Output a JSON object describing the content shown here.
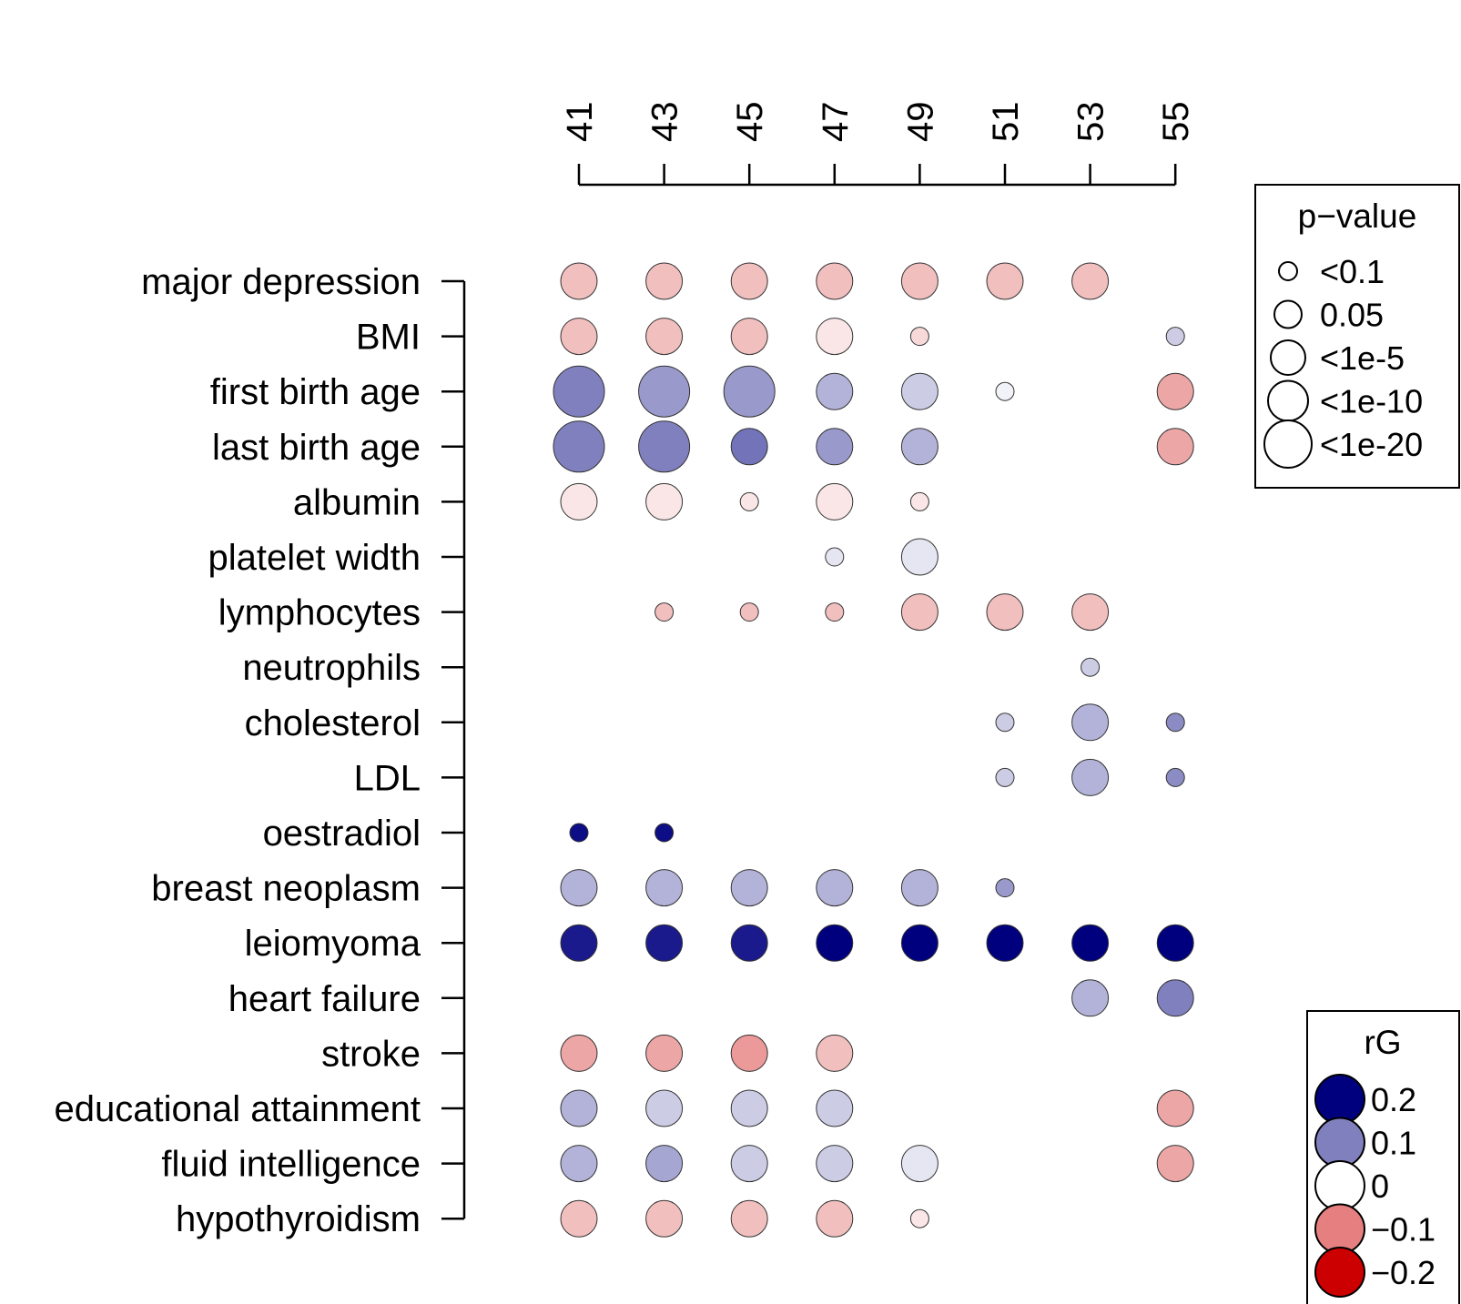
{
  "chart_data": {
    "type": "bubble-matrix",
    "title": "",
    "xlabel": "",
    "ylabel": "",
    "x": [
      41,
      43,
      45,
      47,
      49,
      51,
      53,
      55
    ],
    "traits": [
      "major depression",
      "BMI",
      "first birth age",
      "last birth age",
      "albumin",
      "platelet width",
      "lymphocytes",
      "neutrophils",
      "cholesterol",
      "LDL",
      "oestradiol",
      "breast neoplasm",
      "leiomyoma",
      "heart failure",
      "stroke",
      "educational attainment",
      "fluid intelligence",
      "hypothyroidism"
    ],
    "p_levels": [
      "<0.1",
      "0.05",
      "<1e-5",
      "<1e-10",
      "<1e-20"
    ],
    "points": [
      {
        "trait": "major depression",
        "x": 41,
        "rg": -0.05,
        "p_level": 3
      },
      {
        "trait": "major depression",
        "x": 43,
        "rg": -0.05,
        "p_level": 3
      },
      {
        "trait": "major depression",
        "x": 45,
        "rg": -0.05,
        "p_level": 3
      },
      {
        "trait": "major depression",
        "x": 47,
        "rg": -0.05,
        "p_level": 3
      },
      {
        "trait": "major depression",
        "x": 49,
        "rg": -0.05,
        "p_level": 3
      },
      {
        "trait": "major depression",
        "x": 51,
        "rg": -0.05,
        "p_level": 3
      },
      {
        "trait": "major depression",
        "x": 53,
        "rg": -0.05,
        "p_level": 3
      },
      {
        "trait": "BMI",
        "x": 41,
        "rg": -0.05,
        "p_level": 3
      },
      {
        "trait": "BMI",
        "x": 43,
        "rg": -0.05,
        "p_level": 3
      },
      {
        "trait": "BMI",
        "x": 45,
        "rg": -0.05,
        "p_level": 3
      },
      {
        "trait": "BMI",
        "x": 47,
        "rg": -0.02,
        "p_level": 3
      },
      {
        "trait": "BMI",
        "x": 49,
        "rg": -0.03,
        "p_level": 1
      },
      {
        "trait": "BMI",
        "x": 55,
        "rg": 0.04,
        "p_level": 1
      },
      {
        "trait": "first birth age",
        "x": 41,
        "rg": 0.1,
        "p_level": 5
      },
      {
        "trait": "first birth age",
        "x": 43,
        "rg": 0.08,
        "p_level": 5
      },
      {
        "trait": "first birth age",
        "x": 45,
        "rg": 0.08,
        "p_level": 5
      },
      {
        "trait": "first birth age",
        "x": 47,
        "rg": 0.06,
        "p_level": 3
      },
      {
        "trait": "first birth age",
        "x": 49,
        "rg": 0.04,
        "p_level": 3
      },
      {
        "trait": "first birth age",
        "x": 51,
        "rg": 0.01,
        "p_level": 1
      },
      {
        "trait": "first birth age",
        "x": 55,
        "rg": -0.07,
        "p_level": 3
      },
      {
        "trait": "last birth age",
        "x": 41,
        "rg": 0.1,
        "p_level": 5
      },
      {
        "trait": "last birth age",
        "x": 43,
        "rg": 0.1,
        "p_level": 5
      },
      {
        "trait": "last birth age",
        "x": 45,
        "rg": 0.11,
        "p_level": 3
      },
      {
        "trait": "last birth age",
        "x": 47,
        "rg": 0.08,
        "p_level": 3
      },
      {
        "trait": "last birth age",
        "x": 49,
        "rg": 0.06,
        "p_level": 3
      },
      {
        "trait": "last birth age",
        "x": 55,
        "rg": -0.07,
        "p_level": 3
      },
      {
        "trait": "albumin",
        "x": 41,
        "rg": -0.02,
        "p_level": 3
      },
      {
        "trait": "albumin",
        "x": 43,
        "rg": -0.02,
        "p_level": 3
      },
      {
        "trait": "albumin",
        "x": 45,
        "rg": -0.02,
        "p_level": 1
      },
      {
        "trait": "albumin",
        "x": 47,
        "rg": -0.02,
        "p_level": 3
      },
      {
        "trait": "albumin",
        "x": 49,
        "rg": -0.02,
        "p_level": 1
      },
      {
        "trait": "platelet width",
        "x": 47,
        "rg": 0.02,
        "p_level": 1
      },
      {
        "trait": "platelet width",
        "x": 49,
        "rg": 0.02,
        "p_level": 3
      },
      {
        "trait": "lymphocytes",
        "x": 43,
        "rg": -0.05,
        "p_level": 1
      },
      {
        "trait": "lymphocytes",
        "x": 45,
        "rg": -0.05,
        "p_level": 1
      },
      {
        "trait": "lymphocytes",
        "x": 47,
        "rg": -0.05,
        "p_level": 1
      },
      {
        "trait": "lymphocytes",
        "x": 49,
        "rg": -0.05,
        "p_level": 3
      },
      {
        "trait": "lymphocytes",
        "x": 51,
        "rg": -0.05,
        "p_level": 3
      },
      {
        "trait": "lymphocytes",
        "x": 53,
        "rg": -0.05,
        "p_level": 3
      },
      {
        "trait": "neutrophils",
        "x": 53,
        "rg": 0.04,
        "p_level": 1
      },
      {
        "trait": "cholesterol",
        "x": 51,
        "rg": 0.04,
        "p_level": 1
      },
      {
        "trait": "cholesterol",
        "x": 53,
        "rg": 0.06,
        "p_level": 3
      },
      {
        "trait": "cholesterol",
        "x": 55,
        "rg": 0.09,
        "p_level": 1
      },
      {
        "trait": "LDL",
        "x": 51,
        "rg": 0.04,
        "p_level": 1
      },
      {
        "trait": "LDL",
        "x": 53,
        "rg": 0.06,
        "p_level": 3
      },
      {
        "trait": "LDL",
        "x": 55,
        "rg": 0.09,
        "p_level": 1
      },
      {
        "trait": "oestradiol",
        "x": 41,
        "rg": 0.19,
        "p_level": 1
      },
      {
        "trait": "oestradiol",
        "x": 43,
        "rg": 0.19,
        "p_level": 1
      },
      {
        "trait": "breast neoplasm",
        "x": 41,
        "rg": 0.06,
        "p_level": 3
      },
      {
        "trait": "breast neoplasm",
        "x": 43,
        "rg": 0.06,
        "p_level": 3
      },
      {
        "trait": "breast neoplasm",
        "x": 45,
        "rg": 0.06,
        "p_level": 3
      },
      {
        "trait": "breast neoplasm",
        "x": 47,
        "rg": 0.06,
        "p_level": 3
      },
      {
        "trait": "breast neoplasm",
        "x": 49,
        "rg": 0.06,
        "p_level": 3
      },
      {
        "trait": "breast neoplasm",
        "x": 51,
        "rg": 0.08,
        "p_level": 1
      },
      {
        "trait": "leiomyoma",
        "x": 41,
        "rg": 0.18,
        "p_level": 3
      },
      {
        "trait": "leiomyoma",
        "x": 43,
        "rg": 0.18,
        "p_level": 3
      },
      {
        "trait": "leiomyoma",
        "x": 45,
        "rg": 0.18,
        "p_level": 3
      },
      {
        "trait": "leiomyoma",
        "x": 47,
        "rg": 0.2,
        "p_level": 3
      },
      {
        "trait": "leiomyoma",
        "x": 49,
        "rg": 0.2,
        "p_level": 3
      },
      {
        "trait": "leiomyoma",
        "x": 51,
        "rg": 0.2,
        "p_level": 3
      },
      {
        "trait": "leiomyoma",
        "x": 53,
        "rg": 0.2,
        "p_level": 3
      },
      {
        "trait": "leiomyoma",
        "x": 55,
        "rg": 0.2,
        "p_level": 3
      },
      {
        "trait": "heart failure",
        "x": 53,
        "rg": 0.06,
        "p_level": 3
      },
      {
        "trait": "heart failure",
        "x": 55,
        "rg": 0.1,
        "p_level": 3
      },
      {
        "trait": "stroke",
        "x": 41,
        "rg": -0.07,
        "p_level": 3
      },
      {
        "trait": "stroke",
        "x": 43,
        "rg": -0.07,
        "p_level": 3
      },
      {
        "trait": "stroke",
        "x": 45,
        "rg": -0.08,
        "p_level": 3
      },
      {
        "trait": "stroke",
        "x": 47,
        "rg": -0.05,
        "p_level": 3
      },
      {
        "trait": "educational attainment",
        "x": 41,
        "rg": 0.06,
        "p_level": 3
      },
      {
        "trait": "educational attainment",
        "x": 43,
        "rg": 0.04,
        "p_level": 3
      },
      {
        "trait": "educational attainment",
        "x": 45,
        "rg": 0.04,
        "p_level": 3
      },
      {
        "trait": "educational attainment",
        "x": 47,
        "rg": 0.04,
        "p_level": 3
      },
      {
        "trait": "educational attainment",
        "x": 55,
        "rg": -0.07,
        "p_level": 3
      },
      {
        "trait": "fluid intelligence",
        "x": 41,
        "rg": 0.06,
        "p_level": 3
      },
      {
        "trait": "fluid intelligence",
        "x": 43,
        "rg": 0.07,
        "p_level": 3
      },
      {
        "trait": "fluid intelligence",
        "x": 45,
        "rg": 0.04,
        "p_level": 3
      },
      {
        "trait": "fluid intelligence",
        "x": 47,
        "rg": 0.04,
        "p_level": 3
      },
      {
        "trait": "fluid intelligence",
        "x": 49,
        "rg": 0.02,
        "p_level": 3
      },
      {
        "trait": "fluid intelligence",
        "x": 55,
        "rg": -0.07,
        "p_level": 3
      },
      {
        "trait": "hypothyroidism",
        "x": 41,
        "rg": -0.05,
        "p_level": 3
      },
      {
        "trait": "hypothyroidism",
        "x": 43,
        "rg": -0.05,
        "p_level": 3
      },
      {
        "trait": "hypothyroidism",
        "x": 45,
        "rg": -0.05,
        "p_level": 3
      },
      {
        "trait": "hypothyroidism",
        "x": 47,
        "rg": -0.05,
        "p_level": 3
      },
      {
        "trait": "hypothyroidism",
        "x": 49,
        "rg": -0.02,
        "p_level": 1
      }
    ],
    "legend_pvalue": {
      "title": "p−value",
      "labels": [
        "<0.1",
        "0.05",
        "<1e-5",
        "<1e-10",
        "<1e-20"
      ],
      "placement": "top-right"
    },
    "legend_rg": {
      "title": "rG",
      "labels": [
        "0.2",
        "0.1",
        "0",
        "−0.1",
        "−0.2"
      ],
      "values": [
        0.2,
        0.1,
        0,
        -0.1,
        -0.2
      ],
      "placement": "bottom-right"
    },
    "colors": {
      "rg_pos_max": "#00007f",
      "rg_mid": "#ffffff",
      "rg_neg_max": "#cc0000"
    }
  }
}
